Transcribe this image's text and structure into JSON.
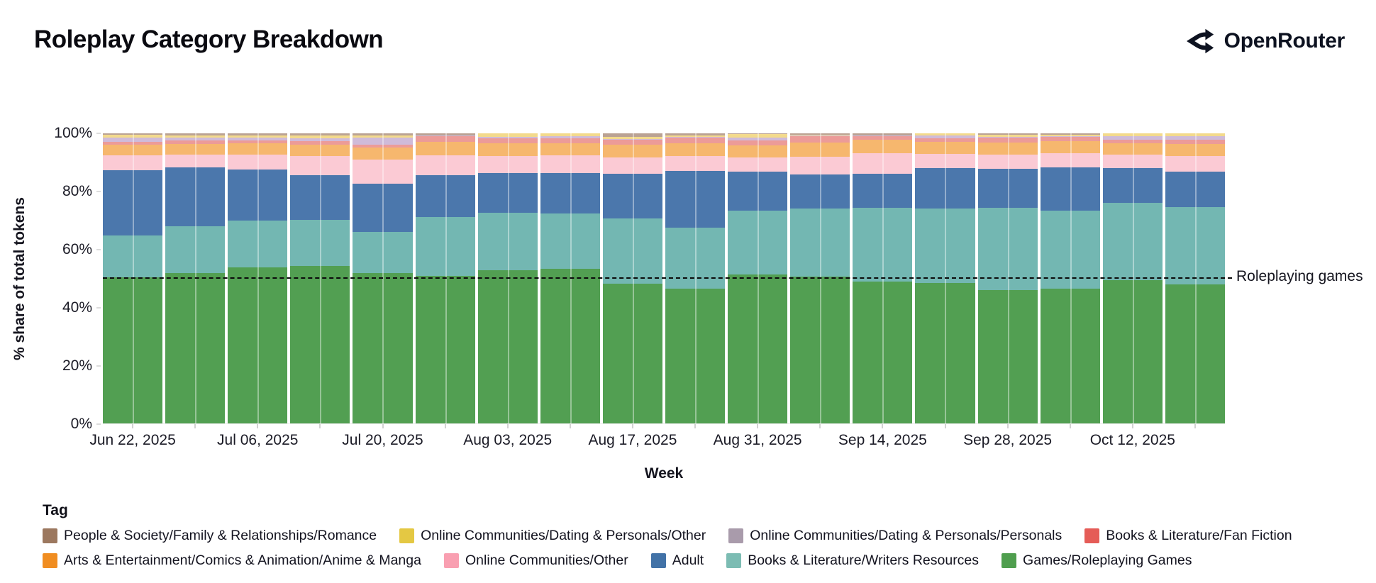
{
  "page": {
    "title": "Roleplay Category Breakdown"
  },
  "brand": {
    "name": "OpenRouter",
    "logo_icon": "openrouter-split-arrows-icon",
    "color": "#0d1220"
  },
  "chart_data": {
    "type": "bar",
    "variant": "stacked-normalized-vertical",
    "title": "Roleplay Category Breakdown",
    "xlabel": "Week",
    "ylabel": "% share of total tokens",
    "ylim": [
      0,
      100
    ],
    "yticks": [
      0,
      20,
      40,
      60,
      80,
      100
    ],
    "ytick_suffix": "%",
    "grid": "off",
    "x": [
      "Jun 22, 2025",
      "Jun 29, 2025",
      "Jul 06, 2025",
      "Jul 13, 2025",
      "Jul 20, 2025",
      "Jul 27, 2025",
      "Aug 03, 2025",
      "Aug 10, 2025",
      "Aug 17, 2025",
      "Aug 24, 2025",
      "Aug 31, 2025",
      "Sep 07, 2025",
      "Sep 14, 2025",
      "Sep 21, 2025",
      "Sep 28, 2025",
      "Oct 05, 2025",
      "Oct 12, 2025",
      "Oct 19, 2025"
    ],
    "xtick_every": 2,
    "xtick_labels_shown": [
      "Jun 22, 2025",
      "Jul 06, 2025",
      "Jul 20, 2025",
      "Aug 03, 2025",
      "Aug 17, 2025",
      "Aug 31, 2025",
      "Sep 14, 2025",
      "Sep 28, 2025",
      "Oct 12, 2025"
    ],
    "legend_title": "Tag",
    "legend_position": "bottom-left, two rows",
    "series_order_note": "series listed bottom-to-top of stack",
    "series": [
      {
        "label": "Games/Roleplaying Games",
        "legend_color": "#4f9e4e",
        "bar_color": "#529f52",
        "values": [
          50.5,
          52,
          54,
          54.5,
          52,
          51,
          53,
          53.5,
          48.4,
          46.5,
          51.5,
          50.7,
          49.1,
          48.5,
          46,
          46.5,
          49.4,
          48
        ]
      },
      {
        "label": "Books & Literature/Writers Resources",
        "legend_color": "#7cbcb3",
        "bar_color": "#73b7b2",
        "values": [
          14.5,
          16,
          16,
          15.7,
          14,
          20.2,
          19.7,
          18.9,
          22.3,
          21.1,
          21.9,
          23.4,
          25.3,
          25.6,
          28.5,
          26.9,
          26.7,
          26.7
        ]
      },
      {
        "label": "Adult",
        "legend_color": "#4272a7",
        "bar_color": "#4b77ac",
        "values": [
          22.3,
          20.3,
          17.5,
          15.4,
          16.7,
          14.3,
          13.7,
          14.0,
          15.4,
          19.6,
          13.4,
          11.7,
          11.6,
          14.0,
          13.4,
          14.9,
          12.0,
          12.2
        ]
      },
      {
        "label": "Online Communities/Other",
        "legend_color": "#f99fb1",
        "bar_color": "#fbcad4",
        "values": [
          5.2,
          4.5,
          5.2,
          6.7,
          8.3,
          7.0,
          5.8,
          6.1,
          5.6,
          4.9,
          4.9,
          6.2,
          7.3,
          4.9,
          4.9,
          4.9,
          4.5,
          5.3
        ]
      },
      {
        "label": "Arts & Entertainment/Comics & Animation/Anime & Manga",
        "legend_color": "#f08d21",
        "bar_color": "#f6b76e",
        "values": [
          3.7,
          3.5,
          3.8,
          3.8,
          4.2,
          4.5,
          4.5,
          4.2,
          4.5,
          4.4,
          4.1,
          4.9,
          4.5,
          4.0,
          4.1,
          4.1,
          4.1,
          4.1
        ]
      },
      {
        "label": "Books & Literature/Fan Fiction",
        "legend_color": "#e55c57",
        "bar_color": "#ec9b98",
        "values": [
          0.8,
          1.2,
          1.1,
          1.3,
          0.8,
          2.0,
          1.6,
          1.6,
          1.6,
          2.0,
          1.8,
          2.1,
          1.2,
          1.2,
          1.6,
          1.6,
          1.2,
          1.5
        ]
      },
      {
        "label": "Online Communities/Dating & Personals/Personals",
        "legend_color": "#a99bab",
        "bar_color": "#cfbbd9",
        "values": [
          1.5,
          1.1,
          0.9,
          1.0,
          2.5,
          0.2,
          0.5,
          0.8,
          0.3,
          0.4,
          1.0,
          0.3,
          0.2,
          1.2,
          0.3,
          0.2,
          1.2,
          1.2
        ]
      },
      {
        "label": "Online Communities/Dating & Personals/Other",
        "legend_color": "#e4c843",
        "bar_color": "#f3da8c",
        "values": [
          1.0,
          0.8,
          0.8,
          0.8,
          0.7,
          0.2,
          1.2,
          0.9,
          0.7,
          0.4,
          1.2,
          0.2,
          0.2,
          0.6,
          0.7,
          0.5,
          0.9,
          1.0
        ]
      },
      {
        "label": "People & Society/Family & Relationships/Romance",
        "legend_color": "#9c785f",
        "bar_color": "#baa294",
        "values": [
          0.5,
          0.6,
          0.7,
          0.8,
          0.8,
          0.6,
          0,
          0,
          1.2,
          0.7,
          0.2,
          0.5,
          0.6,
          0,
          0.5,
          0.4,
          0,
          0
        ]
      }
    ],
    "legend_rows": [
      [
        "People & Society/Family & Relationships/Romance",
        "Online Communities/Dating & Personals/Other",
        "Online Communities/Dating & Personals/Personals",
        "Books & Literature/Fan Fiction"
      ],
      [
        "Arts & Entertainment/Comics & Animation/Anime & Manga",
        "Online Communities/Other",
        "Adult",
        "Books & Literature/Writers Resources",
        "Games/Roleplaying Games"
      ]
    ],
    "reference_line": {
      "value": 50,
      "style": "dashed",
      "color": "#0b0b0b",
      "label": "Roleplaying games"
    }
  }
}
